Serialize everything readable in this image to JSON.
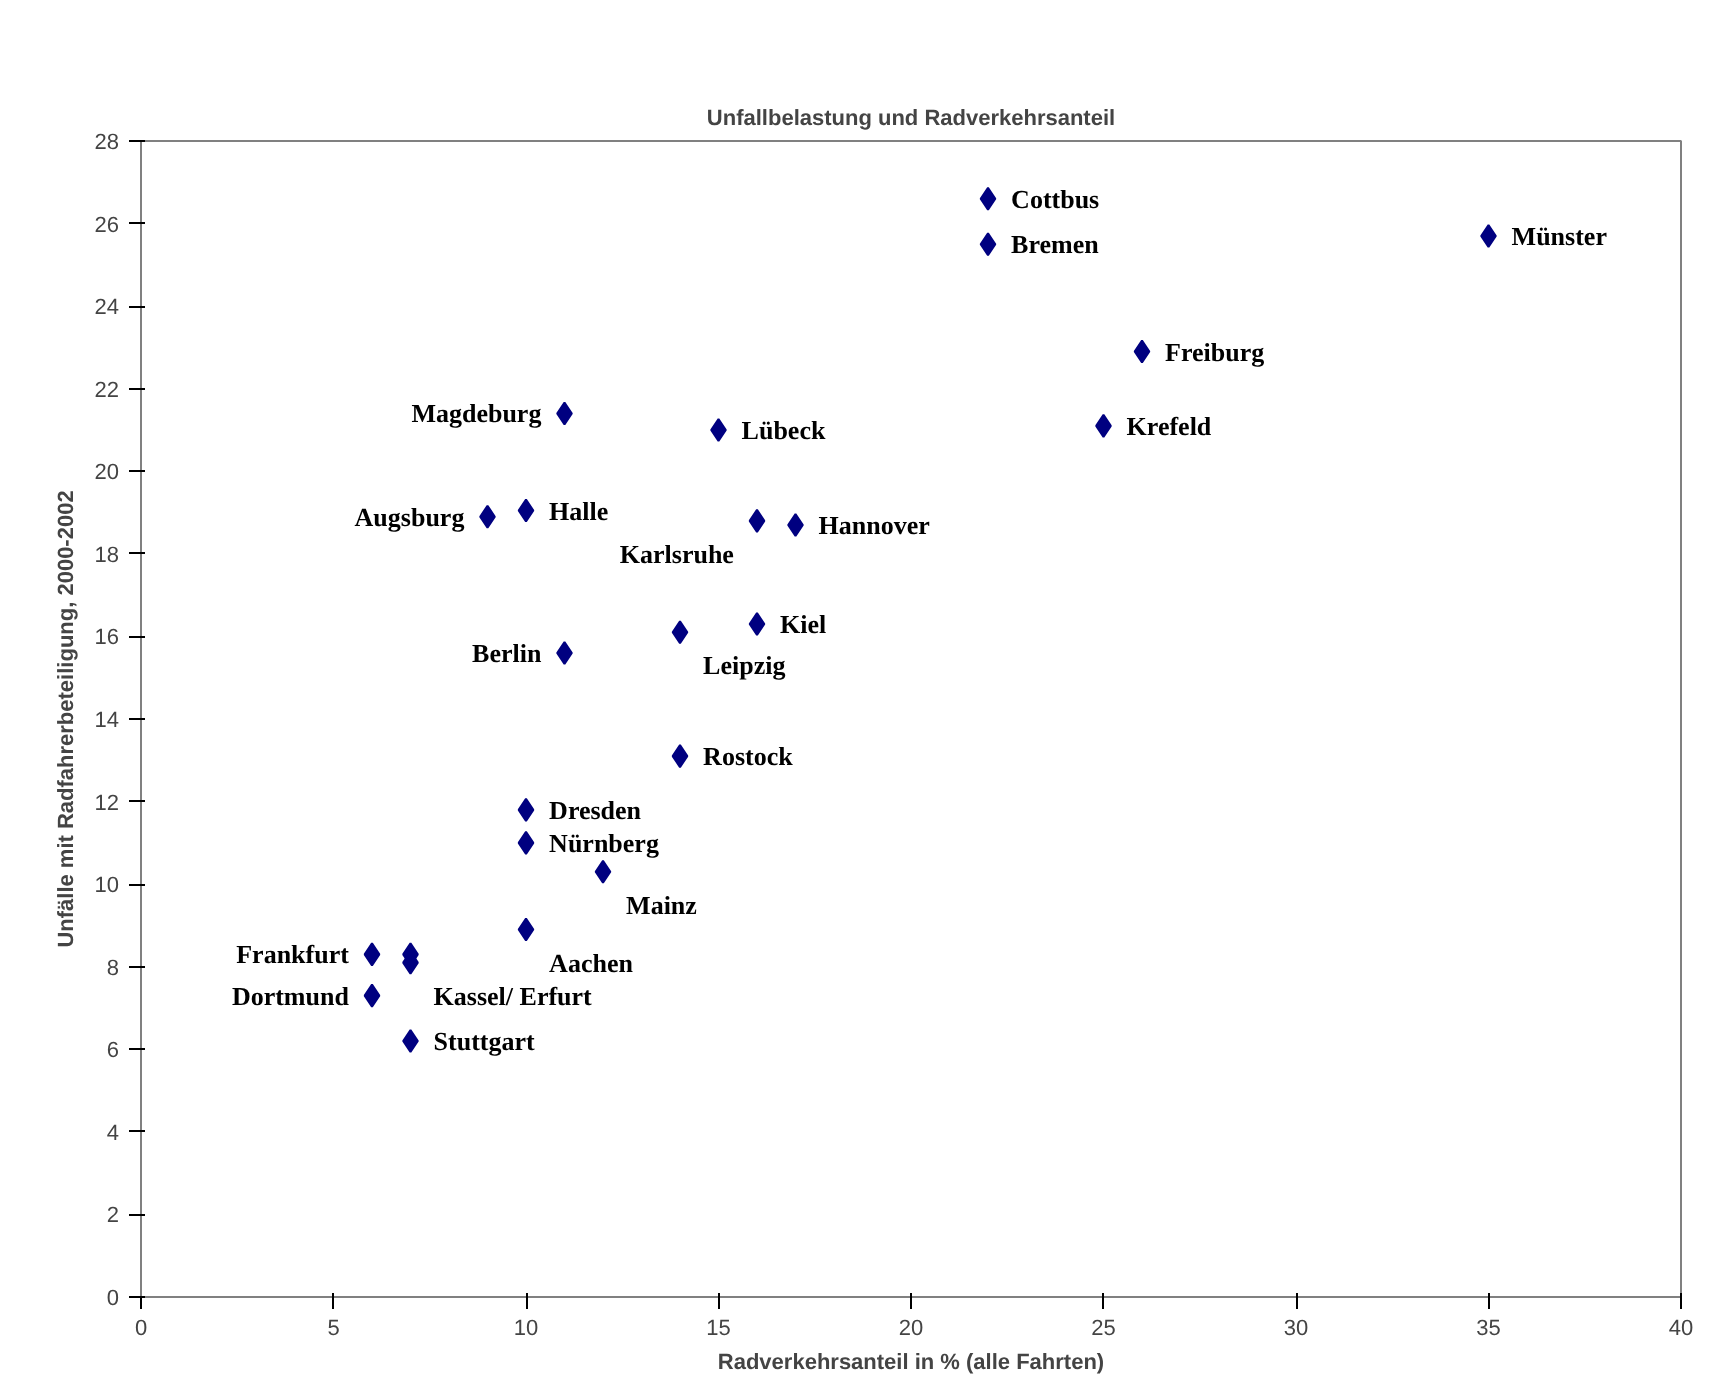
{
  "chart_data": {
    "type": "scatter",
    "title": "Unfallbelastung und Radverkehrsanteil",
    "xlabel": "Radverkehrsanteil in % (alle Fahrten)",
    "ylabel": "Unfälle mit Radfahrerbeteiligung, 2000-2002",
    "x": [
      22,
      22,
      35,
      26,
      25,
      11,
      15,
      10,
      9,
      16,
      17,
      16,
      14,
      11,
      14,
      10,
      10,
      12,
      10,
      6,
      7,
      7,
      6,
      7
    ],
    "series": [
      {
        "color": "#000080",
        "values": [
          26.6,
          25.5,
          25.7,
          22.9,
          21.1,
          21.4,
          21.0,
          19.05,
          18.9,
          18.8,
          18.7,
          16.3,
          16.1,
          15.6,
          13.1,
          11.8,
          11.0,
          10.3,
          8.9,
          8.3,
          8.3,
          8.1,
          7.3,
          6.2
        ]
      }
    ],
    "xlim": [
      0,
      40
    ],
    "xticks": [
      0,
      5,
      10,
      15,
      20,
      25,
      30,
      35,
      40
    ],
    "ylim": [
      0,
      28
    ],
    "yticks": [
      0,
      2,
      4,
      6,
      8,
      10,
      12,
      14,
      16,
      18,
      20,
      22,
      24,
      26,
      28
    ],
    "grid": false,
    "marker": "diamond",
    "annotations": [
      {
        "text": "Cottbus",
        "x": 22,
        "y": 26.6
      },
      {
        "text": "Bremen",
        "x": 22,
        "y": 25.5
      },
      {
        "text": "Münster",
        "x": 35,
        "y": 25.7
      },
      {
        "text": "Freiburg",
        "x": 26,
        "y": 22.9
      },
      {
        "text": "Krefeld",
        "x": 25,
        "y": 21.1
      },
      {
        "text": "Magdeburg",
        "x": 11,
        "y": 21.4
      },
      {
        "text": "Lübeck",
        "x": 15,
        "y": 21.0
      },
      {
        "text": "Halle",
        "x": 10,
        "y": 19.05
      },
      {
        "text": "Augsburg",
        "x": 9,
        "y": 18.9
      },
      {
        "text": "Hannover",
        "x": 17,
        "y": 18.7
      },
      {
        "text": "Karlsruhe",
        "x": 16,
        "y": 18.8
      },
      {
        "text": "Kiel",
        "x": 16,
        "y": 16.3
      },
      {
        "text": "Leipzig",
        "x": 14,
        "y": 16.1
      },
      {
        "text": "Berlin",
        "x": 11,
        "y": 15.6
      },
      {
        "text": "Rostock",
        "x": 14,
        "y": 13.1
      },
      {
        "text": "Dresden",
        "x": 10,
        "y": 11.8
      },
      {
        "text": "Nürnberg",
        "x": 10,
        "y": 11.0
      },
      {
        "text": "Mainz",
        "x": 12,
        "y": 10.3
      },
      {
        "text": "Aachen",
        "x": 10,
        "y": 8.9
      },
      {
        "text": "Frankfurt",
        "x": 6,
        "y": 8.3
      },
      {
        "text": "Kassel/ Erfurt",
        "x": 7,
        "y": 8.1
      },
      {
        "text": "Dortmund",
        "x": 6,
        "y": 7.3
      },
      {
        "text": "Stuttgart",
        "x": 7,
        "y": 6.2
      }
    ]
  }
}
